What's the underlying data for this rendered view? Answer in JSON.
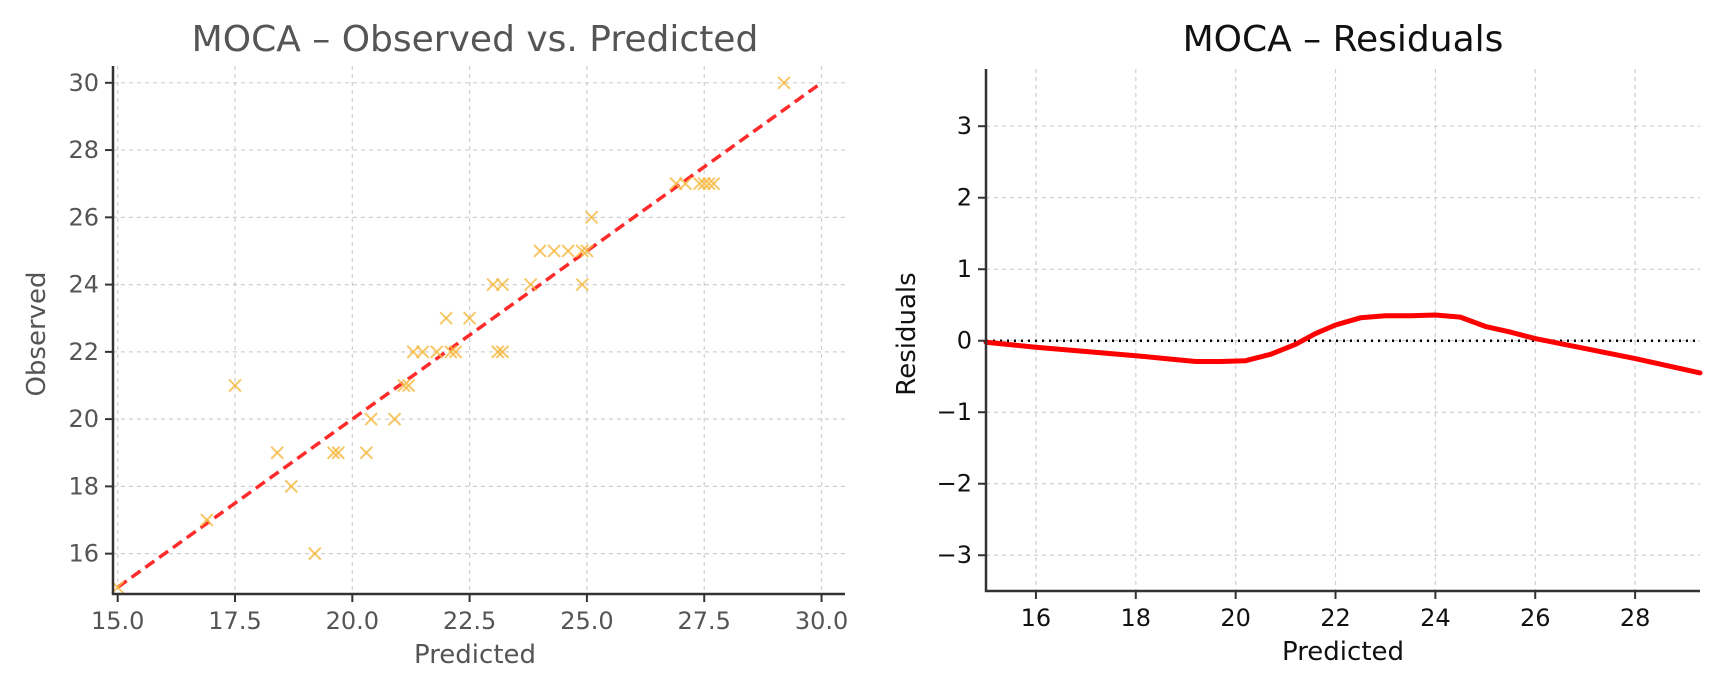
{
  "chart_data": [
    {
      "type": "scatter",
      "title": "MOCA – Observed vs. Predicted",
      "xlabel": "Predicted",
      "ylabel": "Observed",
      "xlim": [
        14.9,
        30.5
      ],
      "ylim": [
        14.8,
        30.5
      ],
      "xticks": [
        15.0,
        17.5,
        20.0,
        22.5,
        25.0,
        27.5,
        30.0
      ],
      "xtick_labels": [
        "15.0",
        "17.5",
        "20.0",
        "22.5",
        "25.0",
        "27.5",
        "30.0"
      ],
      "yticks": [
        16,
        18,
        20,
        22,
        24,
        26,
        28,
        30
      ],
      "ytick_labels": [
        "16",
        "18",
        "20",
        "22",
        "24",
        "26",
        "28",
        "30"
      ],
      "grid": true,
      "marker": "x",
      "marker_color": "#f5b942",
      "reference_line": {
        "x": [
          15,
          30
        ],
        "y": [
          15,
          30
        ],
        "color": "#ff2a2a",
        "style": "dashed"
      },
      "points": [
        {
          "x": 15.0,
          "y": 15
        },
        {
          "x": 16.9,
          "y": 17
        },
        {
          "x": 17.5,
          "y": 21
        },
        {
          "x": 18.4,
          "y": 19
        },
        {
          "x": 18.7,
          "y": 18
        },
        {
          "x": 19.2,
          "y": 16
        },
        {
          "x": 19.6,
          "y": 19
        },
        {
          "x": 19.7,
          "y": 19
        },
        {
          "x": 20.3,
          "y": 19
        },
        {
          "x": 20.4,
          "y": 20
        },
        {
          "x": 20.9,
          "y": 20
        },
        {
          "x": 21.1,
          "y": 21
        },
        {
          "x": 21.2,
          "y": 21
        },
        {
          "x": 21.3,
          "y": 22
        },
        {
          "x": 21.5,
          "y": 22
        },
        {
          "x": 21.8,
          "y": 22
        },
        {
          "x": 22.0,
          "y": 23
        },
        {
          "x": 22.1,
          "y": 22
        },
        {
          "x": 22.2,
          "y": 22
        },
        {
          "x": 22.5,
          "y": 23
        },
        {
          "x": 23.0,
          "y": 24
        },
        {
          "x": 23.2,
          "y": 24
        },
        {
          "x": 23.1,
          "y": 22
        },
        {
          "x": 23.2,
          "y": 22
        },
        {
          "x": 23.8,
          "y": 24
        },
        {
          "x": 24.0,
          "y": 25
        },
        {
          "x": 24.3,
          "y": 25
        },
        {
          "x": 24.6,
          "y": 25
        },
        {
          "x": 24.9,
          "y": 25
        },
        {
          "x": 25.0,
          "y": 25
        },
        {
          "x": 24.9,
          "y": 24
        },
        {
          "x": 25.1,
          "y": 26
        },
        {
          "x": 26.9,
          "y": 27
        },
        {
          "x": 27.1,
          "y": 27
        },
        {
          "x": 27.4,
          "y": 27
        },
        {
          "x": 27.5,
          "y": 27
        },
        {
          "x": 27.6,
          "y": 27
        },
        {
          "x": 27.7,
          "y": 27
        },
        {
          "x": 29.2,
          "y": 30
        }
      ]
    },
    {
      "type": "line",
      "title": "MOCA – Residuals",
      "xlabel": "Predicted",
      "ylabel": "Residuals",
      "xlim": [
        15.0,
        29.3
      ],
      "ylim": [
        -3.5,
        3.8
      ],
      "xticks": [
        16,
        18,
        20,
        22,
        24,
        26,
        28
      ],
      "xtick_labels": [
        "16",
        "18",
        "20",
        "22",
        "24",
        "26",
        "28"
      ],
      "yticks": [
        -3,
        -2,
        -1,
        0,
        1,
        2,
        3
      ],
      "ytick_labels": [
        "−3",
        "−2",
        "−1",
        "0",
        "1",
        "2",
        "3"
      ],
      "grid": true,
      "line_color": "#ff0000",
      "zero_line": {
        "y": 0,
        "style": "dotted",
        "color": "#000000"
      },
      "series": [
        {
          "x": [
            15.0,
            16.0,
            17.0,
            18.0,
            18.6,
            19.2,
            19.7,
            20.2,
            20.7,
            21.2,
            21.6,
            22.0,
            22.5,
            23.0,
            23.5,
            24.0,
            24.5,
            25.0,
            25.5,
            26.0,
            27.0,
            28.0,
            29.3
          ],
          "y": [
            -0.02,
            -0.09,
            -0.15,
            -0.21,
            -0.25,
            -0.29,
            -0.29,
            -0.28,
            -0.19,
            -0.05,
            0.1,
            0.22,
            0.32,
            0.35,
            0.35,
            0.36,
            0.33,
            0.2,
            0.12,
            0.03,
            -0.11,
            -0.25,
            -0.45
          ]
        }
      ]
    }
  ]
}
